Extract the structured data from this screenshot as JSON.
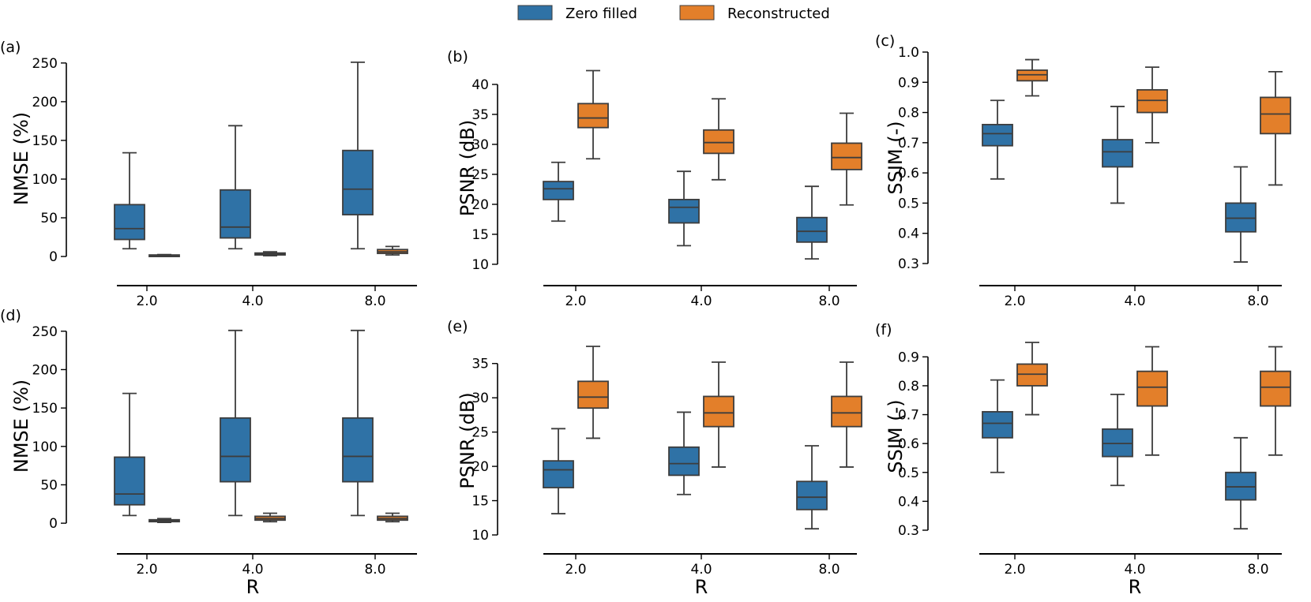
{
  "legend": {
    "items": [
      {
        "label": "Zero filled",
        "color": "#2f72a6"
      },
      {
        "label": "Reconstructed",
        "color": "#e37f2a"
      }
    ]
  },
  "chart_data": [
    {
      "panel": "(a)",
      "type": "boxplot",
      "ylabel": "NMSE (%)",
      "xlabel": "",
      "ylim": [
        -5,
        258
      ],
      "yticks": [
        0,
        50,
        100,
        150,
        200,
        250
      ],
      "ytick_labels": [
        "0",
        "50",
        "100",
        "150",
        "200",
        "250"
      ],
      "categories": [
        "2.0",
        "4.0",
        "8.0"
      ],
      "series": [
        {
          "name": "Zero filled",
          "boxes": [
            {
              "whislo": 10,
              "q1": 22,
              "med": 36,
              "q3": 67,
              "whishi": 134
            },
            {
              "whislo": 10,
              "q1": 24,
              "med": 38,
              "q3": 86,
              "whishi": 169
            },
            {
              "whislo": 10,
              "q1": 54,
              "med": 87,
              "q3": 137,
              "whishi": 251
            }
          ]
        },
        {
          "name": "Reconstructed",
          "boxes": [
            {
              "whislo": 0.5,
              "q1": 1,
              "med": 1.5,
              "q3": 2,
              "whishi": 2.5
            },
            {
              "whislo": 1,
              "q1": 2,
              "med": 3,
              "q3": 4.5,
              "whishi": 6
            },
            {
              "whislo": 2,
              "q1": 4,
              "med": 6,
              "q3": 9,
              "whishi": 13
            }
          ]
        }
      ]
    },
    {
      "panel": "(b)",
      "type": "boxplot",
      "ylabel": "PSNR (dB)",
      "xlabel": "",
      "ylim": [
        9.6,
        42.5
      ],
      "yticks": [
        10,
        15,
        20,
        25,
        30,
        35,
        40
      ],
      "ytick_labels": [
        "10",
        "15",
        "20",
        "25",
        "30",
        "35",
        "40"
      ],
      "categories": [
        "2.0",
        "4.0",
        "8.0"
      ],
      "series": [
        {
          "name": "Zero filled",
          "boxes": [
            {
              "whislo": 17.2,
              "q1": 20.8,
              "med": 22.6,
              "q3": 23.8,
              "whishi": 27
            },
            {
              "whislo": 13.1,
              "q1": 16.9,
              "med": 19.5,
              "q3": 20.8,
              "whishi": 25.5
            },
            {
              "whislo": 10.9,
              "q1": 13.7,
              "med": 15.5,
              "q3": 17.8,
              "whishi": 23
            }
          ]
        },
        {
          "name": "Reconstructed",
          "boxes": [
            {
              "whislo": 27.6,
              "q1": 32.8,
              "med": 34.4,
              "q3": 36.8,
              "whishi": 42.3
            },
            {
              "whislo": 24.1,
              "q1": 28.5,
              "med": 30.3,
              "q3": 32.4,
              "whishi": 37.6
            },
            {
              "whislo": 19.9,
              "q1": 25.8,
              "med": 27.8,
              "q3": 30.2,
              "whishi": 35.2
            }
          ]
        }
      ]
    },
    {
      "panel": "(c)",
      "type": "boxplot",
      "ylabel": "SSIM (-)",
      "xlabel": "",
      "ylim": [
        0.3,
        1.0
      ],
      "yticks": [
        0.3,
        0.4,
        0.5,
        0.6,
        0.7,
        0.8,
        0.9,
        1.0
      ],
      "ytick_labels": [
        "0.3",
        "0.4",
        "0.5",
        "0.6",
        "0.7",
        "0.8",
        "0.9",
        "1.0"
      ],
      "categories": [
        "2.0",
        "4.0",
        "8.0"
      ],
      "series": [
        {
          "name": "Zero filled",
          "boxes": [
            {
              "whislo": 0.58,
              "q1": 0.69,
              "med": 0.73,
              "q3": 0.76,
              "whishi": 0.84
            },
            {
              "whislo": 0.5,
              "q1": 0.62,
              "med": 0.67,
              "q3": 0.71,
              "whishi": 0.82
            },
            {
              "whislo": 0.305,
              "q1": 0.405,
              "med": 0.45,
              "q3": 0.5,
              "whishi": 0.62
            }
          ]
        },
        {
          "name": "Reconstructed",
          "boxes": [
            {
              "whislo": 0.855,
              "q1": 0.905,
              "med": 0.925,
              "q3": 0.94,
              "whishi": 0.975
            },
            {
              "whislo": 0.7,
              "q1": 0.8,
              "med": 0.84,
              "q3": 0.875,
              "whishi": 0.95
            },
            {
              "whislo": 0.56,
              "q1": 0.73,
              "med": 0.795,
              "q3": 0.85,
              "whishi": 0.935
            }
          ]
        }
      ]
    },
    {
      "panel": "(d)",
      "type": "boxplot",
      "ylabel": "NMSE (%)",
      "xlabel": "R",
      "ylim": [
        -5,
        258
      ],
      "yticks": [
        0,
        50,
        100,
        150,
        200,
        250
      ],
      "ytick_labels": [
        "0",
        "50",
        "100",
        "150",
        "200",
        "250"
      ],
      "categories": [
        "2.0",
        "4.0",
        "8.0"
      ],
      "series": [
        {
          "name": "Zero filled",
          "boxes": [
            {
              "whislo": 10,
              "q1": 24,
              "med": 38,
              "q3": 86,
              "whishi": 169
            },
            {
              "whislo": 10,
              "q1": 54,
              "med": 87,
              "q3": 137,
              "whishi": 251
            },
            {
              "whislo": 10,
              "q1": 54,
              "med": 87,
              "q3": 137,
              "whishi": 251
            }
          ]
        },
        {
          "name": "Reconstructed",
          "boxes": [
            {
              "whislo": 1,
              "q1": 2,
              "med": 3,
              "q3": 4.5,
              "whishi": 6
            },
            {
              "whislo": 2,
              "q1": 4,
              "med": 6,
              "q3": 9,
              "whishi": 13
            },
            {
              "whislo": 2,
              "q1": 4,
              "med": 6,
              "q3": 9,
              "whishi": 13
            }
          ]
        }
      ]
    },
    {
      "panel": "(e)",
      "type": "boxplot",
      "ylabel": "PSNR (dB)",
      "xlabel": "R",
      "ylim": [
        10,
        37.5
      ],
      "yticks": [
        10,
        15,
        20,
        25,
        30,
        35
      ],
      "ytick_labels": [
        "10",
        "15",
        "20",
        "25",
        "30",
        "35"
      ],
      "categories": [
        "2.0",
        "4.0",
        "8.0"
      ],
      "series": [
        {
          "name": "Zero filled",
          "boxes": [
            {
              "whislo": 13.1,
              "q1": 16.9,
              "med": 19.5,
              "q3": 20.8,
              "whishi": 25.5
            },
            {
              "whislo": 15.9,
              "q1": 18.7,
              "med": 20.4,
              "q3": 22.8,
              "whishi": 27.9
            },
            {
              "whislo": 10.9,
              "q1": 13.7,
              "med": 15.5,
              "q3": 17.8,
              "whishi": 23
            }
          ]
        },
        {
          "name": "Reconstructed",
          "boxes": [
            {
              "whislo": 24.1,
              "q1": 28.5,
              "med": 30.1,
              "q3": 32.4,
              "whishi": 37.5
            },
            {
              "whislo": 19.9,
              "q1": 25.8,
              "med": 27.8,
              "q3": 30.2,
              "whishi": 35.2
            },
            {
              "whislo": 19.9,
              "q1": 25.8,
              "med": 27.8,
              "q3": 30.2,
              "whishi": 35.2
            }
          ]
        }
      ]
    },
    {
      "panel": "(f)",
      "type": "boxplot",
      "ylabel": "SSIM (-)",
      "xlabel": "R",
      "ylim": [
        0.3,
        0.95
      ],
      "yticks": [
        0.3,
        0.4,
        0.5,
        0.6,
        0.7,
        0.8,
        0.9
      ],
      "ytick_labels": [
        "0.3",
        "0.4",
        "0.5",
        "0.6",
        "0.7",
        "0.8",
        "0.9"
      ],
      "categories": [
        "2.0",
        "4.0",
        "8.0"
      ],
      "series": [
        {
          "name": "Zero filled",
          "boxes": [
            {
              "whislo": 0.5,
              "q1": 0.62,
              "med": 0.67,
              "q3": 0.71,
              "whishi": 0.82
            },
            {
              "whislo": 0.455,
              "q1": 0.555,
              "med": 0.6,
              "q3": 0.65,
              "whishi": 0.77
            },
            {
              "whislo": 0.305,
              "q1": 0.405,
              "med": 0.45,
              "q3": 0.5,
              "whishi": 0.62
            }
          ]
        },
        {
          "name": "Reconstructed",
          "boxes": [
            {
              "whislo": 0.7,
              "q1": 0.8,
              "med": 0.84,
              "q3": 0.875,
              "whishi": 0.95
            },
            {
              "whislo": 0.56,
              "q1": 0.73,
              "med": 0.795,
              "q3": 0.85,
              "whishi": 0.935
            },
            {
              "whislo": 0.56,
              "q1": 0.73,
              "med": 0.795,
              "q3": 0.85,
              "whishi": 0.935
            }
          ]
        }
      ]
    }
  ]
}
